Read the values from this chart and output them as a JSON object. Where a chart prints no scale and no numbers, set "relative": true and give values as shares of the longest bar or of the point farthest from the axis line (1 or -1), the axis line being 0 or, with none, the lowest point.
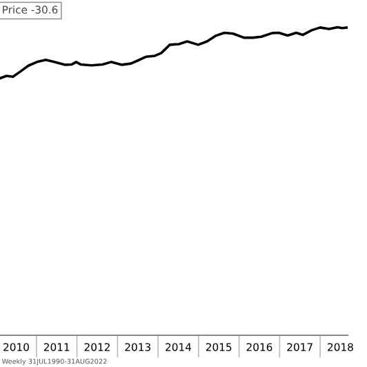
{
  "chart_data": {
    "type": "line",
    "relative": true,
    "title": "Price -30.6",
    "annotations": [
      "Weekly 31JUL1990-31AUG2022"
    ],
    "xlim": [
      2010.1,
      2018.68
    ],
    "xticks": [
      {
        "value": 2010.5,
        "label": "2010"
      },
      {
        "value": 2011,
        "label": null
      },
      {
        "value": 2011.5,
        "label": "2011"
      },
      {
        "value": 2012,
        "label": null
      },
      {
        "value": 2012.5,
        "label": "2012"
      },
      {
        "value": 2013,
        "label": null
      },
      {
        "value": 2013.5,
        "label": "2013"
      },
      {
        "value": 2014,
        "label": null
      },
      {
        "value": 2014.5,
        "label": "2014"
      },
      {
        "value": 2015,
        "label": null
      },
      {
        "value": 2015.5,
        "label": "2015"
      },
      {
        "value": 2016,
        "label": null
      },
      {
        "value": 2016.5,
        "label": "2016"
      },
      {
        "value": 2017,
        "label": null
      },
      {
        "value": 2017.5,
        "label": "2017"
      },
      {
        "value": 2018,
        "label": null
      },
      {
        "value": 2018.5,
        "label": "2018"
      }
    ],
    "grid": false,
    "legend": false,
    "marker": "none",
    "line_style": "solid",
    "x": [
      2010.1,
      2010.26,
      2010.42,
      2010.58,
      2010.8,
      2011.01,
      2011.23,
      2011.44,
      2011.71,
      2011.87,
      2011.98,
      2012.09,
      2012.36,
      2012.63,
      2012.84,
      2013.11,
      2013.33,
      2013.54,
      2013.7,
      2013.92,
      2014.08,
      2014.29,
      2014.51,
      2014.72,
      2014.99,
      2015.21,
      2015.42,
      2015.64,
      2015.85,
      2016.12,
      2016.34,
      2016.55,
      2016.82,
      2016.98,
      2017.2,
      2017.41,
      2017.57,
      2017.79,
      2018.0,
      2018.22,
      2018.43,
      2018.54,
      2018.68
    ],
    "series": [
      {
        "color": "#000000",
        "values": [
          0.834,
          0.842,
          0.839,
          0.854,
          0.875,
          0.887,
          0.894,
          0.887,
          0.878,
          0.879,
          0.887,
          0.879,
          0.876,
          0.879,
          0.887,
          0.878,
          0.882,
          0.894,
          0.904,
          0.907,
          0.916,
          0.943,
          0.945,
          0.954,
          0.943,
          0.954,
          0.972,
          0.982,
          0.979,
          0.966,
          0.966,
          0.969,
          0.981,
          0.982,
          0.973,
          0.982,
          0.975,
          0.99,
          0.999,
          0.994,
          1,
          0.997,
          0.999
        ]
      }
    ]
  }
}
